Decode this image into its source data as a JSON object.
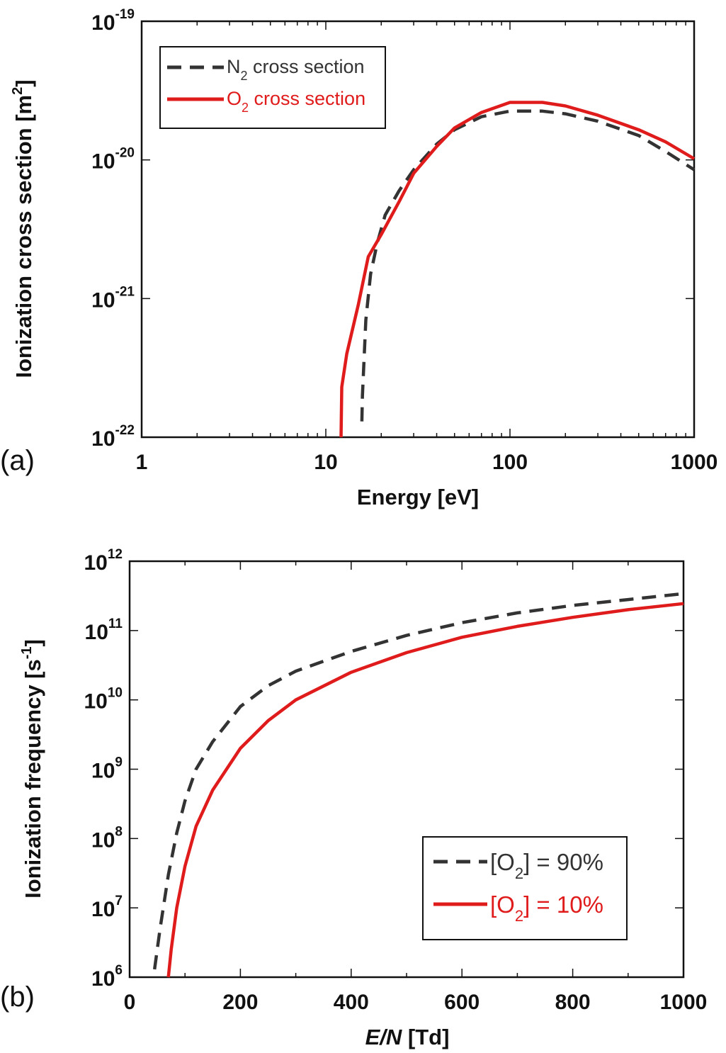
{
  "chart_data": [
    {
      "type": "line",
      "panel_label": "(a)",
      "xlabel": "Energy [eV]",
      "ylabel": "Ionization cross section [m",
      "ylabel_sup": "2",
      "ylabel_tail": "]",
      "xscale": "log",
      "yscale": "log",
      "xlim": [
        1,
        1000
      ],
      "ylim": [
        1e-22,
        1e-19
      ],
      "x_tick_labels": [
        "1",
        "10",
        "100",
        "1000"
      ],
      "y_tick_base": "10",
      "y_tick_exponents": [
        "-22",
        "-21",
        "-20",
        "-19"
      ],
      "grid": false,
      "legend_position": "top-left",
      "series": [
        {
          "name_main": "N",
          "name_sub": "2",
          "name_tail": " cross section",
          "color": "#333333",
          "dash": "dashed",
          "x": [
            15.7,
            15.8,
            16.5,
            17.5,
            19,
            21,
            25,
            30,
            40,
            50,
            70,
            100,
            150,
            200,
            300,
            500,
            700,
            1000
          ],
          "y": [
            1.3e-22,
            2e-22,
            7e-22,
            1.5e-21,
            2.5e-21,
            4e-21,
            6e-21,
            8.5e-21,
            1.3e-20,
            1.65e-20,
            2.05e-20,
            2.25e-20,
            2.25e-20,
            2.15e-20,
            1.9e-20,
            1.5e-20,
            1.15e-20,
            8.5e-21
          ]
        },
        {
          "name_main": "O",
          "name_sub": "2",
          "name_tail": " cross section",
          "color": "#e01b1b",
          "dash": "solid",
          "x": [
            12.1,
            12.2,
            13,
            15,
            17,
            20,
            25,
            30,
            40,
            50,
            70,
            100,
            150,
            200,
            300,
            500,
            700,
            1000
          ],
          "y": [
            1e-22,
            2.3e-22,
            4e-22,
            9e-22,
            2e-21,
            2.9e-21,
            5e-21,
            8e-21,
            1.25e-20,
            1.7e-20,
            2.2e-20,
            2.6e-20,
            2.6e-20,
            2.45e-20,
            2.1e-20,
            1.65e-20,
            1.35e-20,
            1.02e-20
          ]
        }
      ]
    },
    {
      "type": "line",
      "panel_label": "(b)",
      "xlabel_italic": "E/N",
      "xlabel_rest": " [Td]",
      "ylabel": "Ionization frequency [s",
      "ylabel_sup": "-1",
      "ylabel_tail": "]",
      "xscale": "linear",
      "yscale": "log",
      "xlim": [
        0,
        1000
      ],
      "ylim": [
        1000000.0,
        1000000000000.0
      ],
      "x_tick_labels": [
        "0",
        "200",
        "400",
        "600",
        "800",
        "1000"
      ],
      "y_tick_base": "10",
      "y_tick_exponents": [
        "6",
        "7",
        "8",
        "9",
        "10",
        "11",
        "12"
      ],
      "grid": false,
      "legend_position": "bottom-right",
      "series": [
        {
          "name_main": "[O",
          "name_sub": "2",
          "name_tail": "] = 90%",
          "color": "#333333",
          "dash": "dashed",
          "x": [
            45,
            55,
            70,
            85,
            100,
            120,
            150,
            200,
            250,
            300,
            400,
            500,
            600,
            700,
            800,
            900,
            1000
          ],
          "y": [
            1300000.0,
            5000000.0,
            30000000.0,
            120000000.0,
            350000000.0,
            1000000000.0,
            2500000000.0,
            8000000000.0,
            16000000000.0,
            26000000000.0,
            50000000000.0,
            85000000000.0,
            130000000000.0,
            180000000000.0,
            230000000000.0,
            280000000000.0,
            340000000000.0
          ]
        },
        {
          "name_main": "[O",
          "name_sub": "2",
          "name_tail": "] = 10%",
          "color": "#e01b1b",
          "dash": "solid",
          "x": [
            70,
            75,
            85,
            100,
            120,
            150,
            200,
            250,
            300,
            400,
            500,
            600,
            700,
            800,
            900,
            1000
          ],
          "y": [
            1000000.0,
            2500000.0,
            10000000.0,
            40000000.0,
            150000000.0,
            500000000.0,
            2000000000.0,
            5000000000.0,
            10000000000.0,
            25000000000.0,
            48000000000.0,
            80000000000.0,
            115000000000.0,
            155000000000.0,
            200000000000.0,
            245000000000.0
          ]
        }
      ]
    }
  ]
}
